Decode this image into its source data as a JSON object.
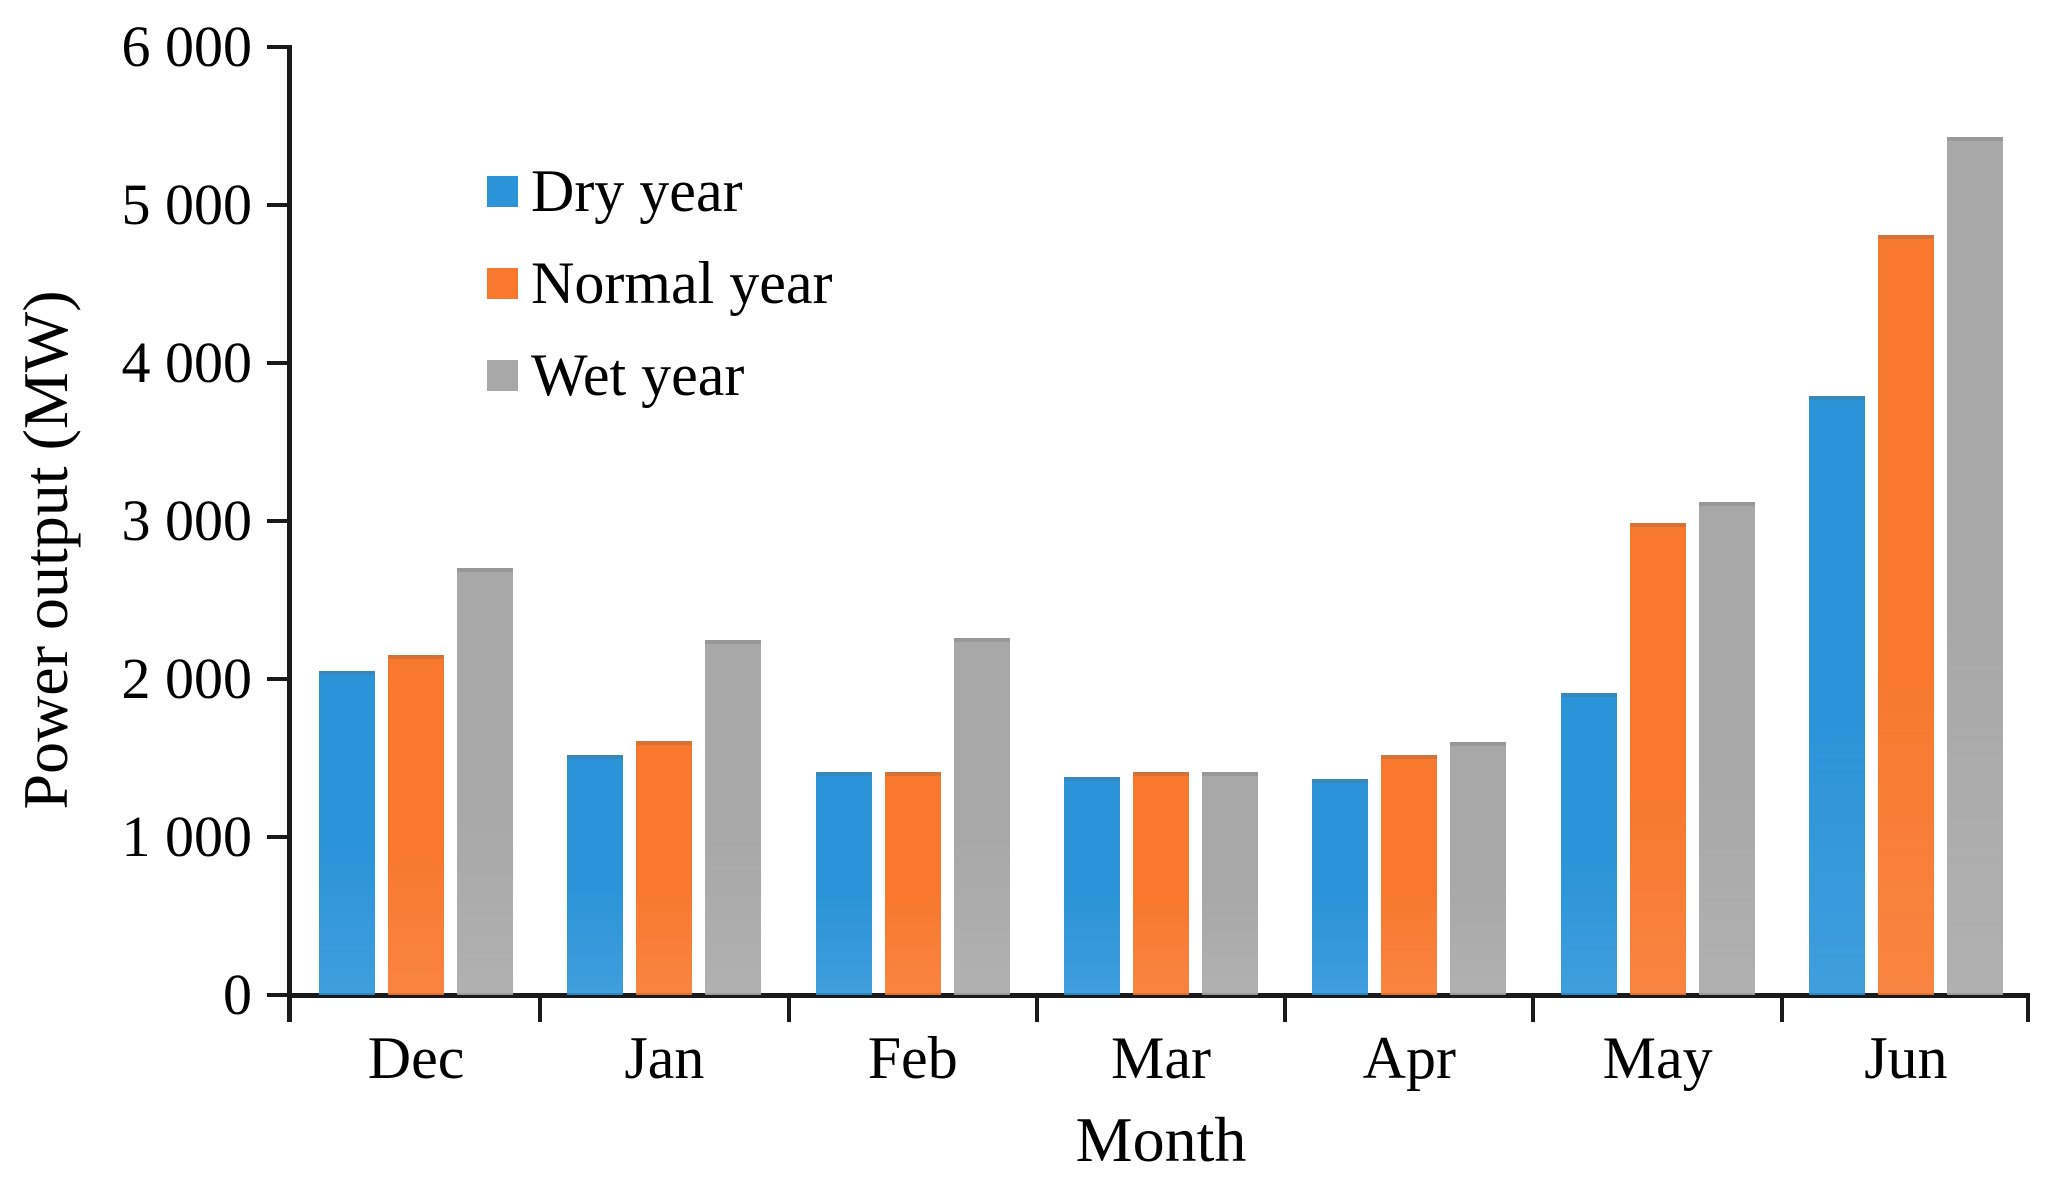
{
  "chart_data": {
    "type": "bar",
    "title": "",
    "xlabel": "Month",
    "ylabel": "Power output (MW)",
    "categories": [
      "Dec",
      "Jan",
      "Feb",
      "Mar",
      "Apr",
      "May",
      "Jun"
    ],
    "series": [
      {
        "name": "Dry year",
        "color": "#2B94D8",
        "values": [
          2050,
          1520,
          1410,
          1380,
          1370,
          1910,
          3790
        ]
      },
      {
        "name": "Normal year",
        "color": "#F8782D",
        "values": [
          2150,
          1610,
          1410,
          1410,
          1520,
          2990,
          4810
        ]
      },
      {
        "name": "Wet year",
        "color": "#A8A8A8",
        "values": [
          2700,
          2250,
          2260,
          1410,
          1600,
          3120,
          5430
        ]
      }
    ],
    "ylim": [
      0,
      6000
    ],
    "ytick_step": 1000,
    "ytick_labels": [
      "0",
      "1 000",
      "2 000",
      "3 000",
      "4 000",
      "5 000",
      "6 000"
    ],
    "legend_position": "top-left-inside",
    "grid": false,
    "axis_color": "#1a1a1a"
  }
}
